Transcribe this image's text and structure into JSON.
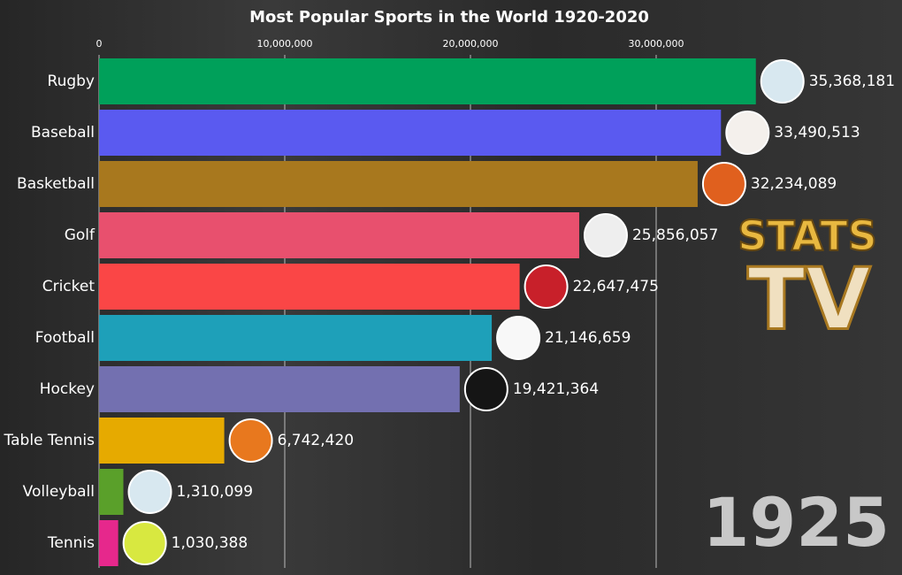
{
  "chart_data": {
    "type": "bar",
    "orientation": "horizontal",
    "title": "Most Popular Sports in the World 1920-2020",
    "categories": [
      "Rugby",
      "Baseball",
      "Basketball",
      "Golf",
      "Cricket",
      "Football",
      "Hockey",
      "Table Tennis",
      "Volleyball",
      "Tennis"
    ],
    "values": [
      35368181,
      33490513,
      32234089,
      25856057,
      22647475,
      21146659,
      19421364,
      6742420,
      1310099,
      1030388
    ],
    "value_labels": [
      "35,368,181",
      "33,490,513",
      "32,234,089",
      "25,856,057",
      "22,647,475",
      "21,146,659",
      "19,421,364",
      "6,742,420",
      "1,310,099",
      "1,030,388"
    ],
    "colors": [
      "#00a05a",
      "#5a5af0",
      "#a8781e",
      "#e8506e",
      "#fa4646",
      "#1ea0b9",
      "#7370b0",
      "#e6aa00",
      "#5aa02a",
      "#e6288c"
    ],
    "xlim": [
      0,
      43000000
    ],
    "xticks": [
      0,
      {
        "value": 10000000,
        "label": "10,000,000"
      },
      {
        "value": 20000000,
        "label": "20,000,000"
      },
      {
        "value": 30000000,
        "label": "30,000,000"
      }
    ],
    "grid": true,
    "annotation": "1925",
    "watermark": [
      "STATS",
      "TV"
    ]
  }
}
